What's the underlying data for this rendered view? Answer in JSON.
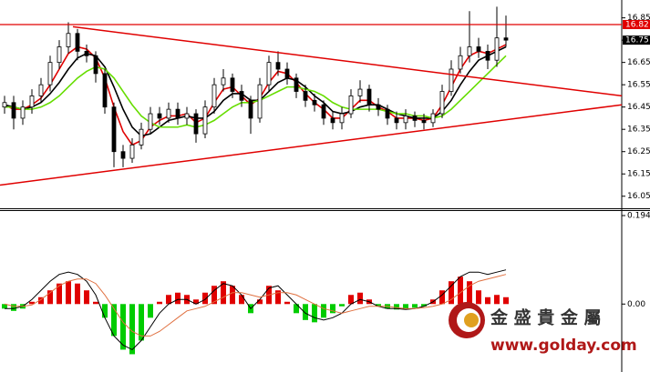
{
  "chart_data": [
    {
      "type": "candlestick",
      "open": [
        16.45,
        16.47,
        16.4,
        16.45,
        16.5,
        16.55,
        16.65,
        16.72,
        16.78,
        16.7,
        16.68,
        16.6,
        16.45,
        16.25,
        16.22,
        16.28,
        16.35,
        16.42,
        16.4,
        16.44,
        16.4,
        16.42,
        16.33,
        16.45,
        16.55,
        16.58,
        16.52,
        16.48,
        16.4,
        16.55,
        16.65,
        16.62,
        16.58,
        16.52,
        16.48,
        16.46,
        16.4,
        16.38,
        16.42,
        16.5,
        16.53,
        16.46,
        16.44,
        16.4,
        16.38,
        16.41,
        16.39,
        16.38,
        16.42,
        16.52,
        16.62,
        16.68,
        16.72,
        16.7,
        16.66,
        16.76
      ],
      "high": [
        16.5,
        16.5,
        16.48,
        16.53,
        16.58,
        16.68,
        16.75,
        16.83,
        16.8,
        16.73,
        16.7,
        16.62,
        16.47,
        16.28,
        16.31,
        16.38,
        16.45,
        16.45,
        16.47,
        16.47,
        16.45,
        16.44,
        16.48,
        16.58,
        16.62,
        16.6,
        16.55,
        16.5,
        16.58,
        16.68,
        16.7,
        16.65,
        16.6,
        16.55,
        16.51,
        16.48,
        16.43,
        16.45,
        16.53,
        16.57,
        16.55,
        16.49,
        16.46,
        16.43,
        16.44,
        16.43,
        16.42,
        16.44,
        16.55,
        16.66,
        16.72,
        16.88,
        16.76,
        16.73,
        16.9,
        16.86
      ],
      "low": [
        16.42,
        16.35,
        16.37,
        16.42,
        16.47,
        16.52,
        16.62,
        16.69,
        16.66,
        16.65,
        16.56,
        16.42,
        16.18,
        16.18,
        16.2,
        16.26,
        16.33,
        16.37,
        16.38,
        16.37,
        16.37,
        16.29,
        16.31,
        16.42,
        16.52,
        16.49,
        16.45,
        16.33,
        16.38,
        16.52,
        16.59,
        16.55,
        16.49,
        16.45,
        16.43,
        16.37,
        16.35,
        16.35,
        16.4,
        16.47,
        16.43,
        16.41,
        16.37,
        16.35,
        16.35,
        16.36,
        16.35,
        16.36,
        16.4,
        16.5,
        16.6,
        16.65,
        16.67,
        16.62,
        16.63,
        16.72
      ],
      "close": [
        16.47,
        16.4,
        16.45,
        16.5,
        16.55,
        16.65,
        16.72,
        16.78,
        16.7,
        16.68,
        16.6,
        16.45,
        16.25,
        16.22,
        16.28,
        16.35,
        16.42,
        16.4,
        16.44,
        16.4,
        16.42,
        16.33,
        16.45,
        16.55,
        16.58,
        16.52,
        16.48,
        16.4,
        16.55,
        16.65,
        16.62,
        16.58,
        16.52,
        16.48,
        16.46,
        16.4,
        16.38,
        16.42,
        16.5,
        16.53,
        16.46,
        16.44,
        16.4,
        16.38,
        16.41,
        16.39,
        16.38,
        16.42,
        16.52,
        16.62,
        16.68,
        16.72,
        16.7,
        16.66,
        16.76,
        16.75
      ],
      "moving_averages": [
        {
          "color": "#e00000",
          "values": [
            16.46,
            16.44,
            16.44,
            16.46,
            16.49,
            16.55,
            16.62,
            16.69,
            16.72,
            16.71,
            16.67,
            16.58,
            16.45,
            16.34,
            16.28,
            16.3,
            16.36,
            16.39,
            16.41,
            16.41,
            16.42,
            16.38,
            16.4,
            16.47,
            16.53,
            16.54,
            16.5,
            16.46,
            16.49,
            16.56,
            16.61,
            16.6,
            16.56,
            16.51,
            16.47,
            16.44,
            16.4,
            16.4,
            16.44,
            16.48,
            16.48,
            16.45,
            16.43,
            16.4,
            16.4,
            16.4,
            16.39,
            16.4,
            16.46,
            16.54,
            16.62,
            16.68,
            16.7,
            16.69,
            16.71,
            16.73
          ]
        },
        {
          "color": "#000000",
          "values": [
            16.46,
            16.45,
            16.44,
            16.45,
            16.47,
            16.51,
            16.56,
            16.62,
            16.67,
            16.69,
            16.68,
            16.63,
            16.54,
            16.44,
            16.36,
            16.32,
            16.33,
            16.36,
            16.39,
            16.4,
            16.41,
            16.4,
            16.4,
            16.43,
            16.48,
            16.51,
            16.51,
            16.48,
            16.48,
            16.52,
            16.56,
            16.58,
            16.57,
            16.54,
            16.5,
            16.47,
            16.43,
            16.42,
            16.43,
            16.45,
            16.46,
            16.46,
            16.44,
            16.42,
            16.41,
            16.4,
            16.4,
            16.4,
            16.43,
            16.48,
            16.55,
            16.61,
            16.66,
            16.68,
            16.7,
            16.72
          ]
        },
        {
          "color": "#66dd00",
          "values": [
            16.45,
            16.45,
            16.44,
            16.44,
            16.45,
            16.47,
            16.5,
            16.54,
            16.58,
            16.61,
            16.63,
            16.62,
            16.58,
            16.52,
            16.46,
            16.41,
            16.38,
            16.36,
            16.36,
            16.36,
            16.37,
            16.36,
            16.37,
            16.39,
            16.42,
            16.45,
            16.47,
            16.47,
            16.48,
            16.5,
            16.52,
            16.54,
            16.54,
            16.53,
            16.52,
            16.5,
            16.47,
            16.45,
            16.44,
            16.44,
            16.44,
            16.44,
            16.43,
            16.42,
            16.42,
            16.41,
            16.41,
            16.4,
            16.41,
            16.44,
            16.48,
            16.52,
            16.56,
            16.6,
            16.64,
            16.68
          ]
        }
      ],
      "trendlines": [
        {
          "color": "#e00000",
          "x": [
            7.5,
            67.7
          ],
          "y": [
            16.81,
            16.5
          ]
        },
        {
          "color": "#e00000",
          "x": [
            -0.5,
            67.7
          ],
          "y": [
            16.1,
            16.46
          ]
        }
      ],
      "price_labels": [
        {
          "value": 16.82,
          "color": "#e00000"
        },
        {
          "value": 16.75,
          "color": "#000000"
        }
      ],
      "ylim": [
        16.0,
        16.93
      ],
      "yticks": [
        16.05,
        16.15,
        16.25,
        16.35,
        16.45,
        16.55,
        16.65,
        16.75,
        16.85
      ]
    },
    {
      "type": "macd",
      "histogram": [
        -0.01,
        -0.015,
        -0.01,
        0.005,
        0.015,
        0.03,
        0.045,
        0.05,
        0.045,
        0.03,
        0.005,
        -0.03,
        -0.07,
        -0.1,
        -0.11,
        -0.08,
        -0.03,
        0.005,
        0.02,
        0.025,
        0.02,
        0.01,
        0.025,
        0.04,
        0.05,
        0.04,
        0.02,
        -0.02,
        0.01,
        0.04,
        0.03,
        0.005,
        -0.02,
        -0.035,
        -0.04,
        -0.03,
        -0.02,
        -0.005,
        0.02,
        0.025,
        0.01,
        -0.005,
        -0.01,
        -0.012,
        -0.01,
        -0.008,
        -0.005,
        0.01,
        0.03,
        0.05,
        0.06,
        0.05,
        0.03,
        0.015,
        0.02,
        0.015
      ],
      "positive_color": "#e00000",
      "negative_color": "#00cc00",
      "series": [
        {
          "color": "#000000",
          "values": [
            -0.01,
            -0.01,
            -0.005,
            0.01,
            0.03,
            0.05,
            0.065,
            0.07,
            0.065,
            0.05,
            0.02,
            -0.03,
            -0.07,
            -0.09,
            -0.1,
            -0.08,
            -0.05,
            -0.02,
            0.0,
            0.01,
            0.01,
            0.0,
            0.01,
            0.03,
            0.045,
            0.04,
            0.02,
            -0.01,
            0.01,
            0.035,
            0.04,
            0.02,
            0.0,
            -0.02,
            -0.03,
            -0.035,
            -0.03,
            -0.02,
            0.0,
            0.01,
            0.005,
            -0.005,
            -0.01,
            -0.01,
            -0.012,
            -0.01,
            -0.005,
            0.005,
            0.02,
            0.04,
            0.06,
            0.07,
            0.07,
            0.065,
            0.07,
            0.075
          ]
        },
        {
          "color": "#e07040",
          "values": [
            0.0,
            -0.005,
            -0.005,
            -0.002,
            0.01,
            0.025,
            0.04,
            0.05,
            0.055,
            0.055,
            0.045,
            0.02,
            -0.01,
            -0.04,
            -0.06,
            -0.07,
            -0.07,
            -0.06,
            -0.045,
            -0.03,
            -0.015,
            -0.01,
            -0.005,
            0.005,
            0.015,
            0.025,
            0.025,
            0.02,
            0.015,
            0.02,
            0.025,
            0.025,
            0.02,
            0.01,
            0.0,
            -0.01,
            -0.015,
            -0.02,
            -0.015,
            -0.01,
            -0.005,
            -0.005,
            -0.005,
            -0.008,
            -0.01,
            -0.01,
            -0.008,
            -0.005,
            0.0,
            0.01,
            0.025,
            0.04,
            0.05,
            0.055,
            0.06,
            0.065
          ]
        }
      ],
      "ylim": [
        -0.149,
        0.204
      ],
      "yticks": [
        {
          "value": 0,
          "label": "0.00"
        },
        0.194
      ],
      "annotations": [
        "金 盛 貴 金 屬",
        "www.golday.com"
      ]
    }
  ]
}
